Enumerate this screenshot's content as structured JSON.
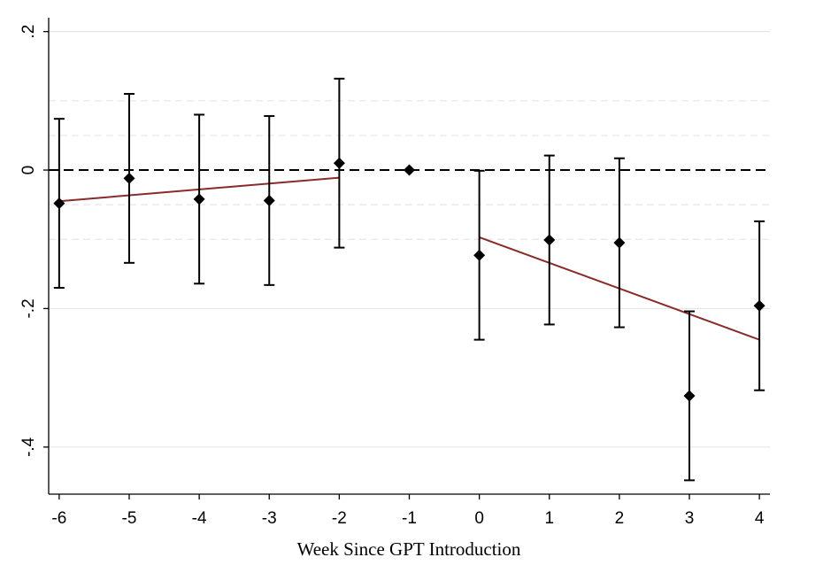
{
  "chart_data": {
    "type": "scatter",
    "title": "",
    "xlabel": "Week Since GPT Introduction",
    "ylabel": "",
    "x_ticks": [
      "-6",
      "-5",
      "-4",
      "-3",
      "-2",
      "-1",
      "0",
      "1",
      "2",
      "3",
      "4"
    ],
    "y_ticks": [
      ".2",
      "0",
      "-.2",
      "-.4"
    ],
    "y_tick_values": [
      0.2,
      0,
      -0.2,
      -0.4
    ],
    "xlim": [
      -6.15,
      4.15
    ],
    "ylim": [
      -0.468,
      0.22
    ],
    "grid": true,
    "reference_line": {
      "y": 0,
      "style": "dashed",
      "color": "#000000"
    },
    "points": [
      {
        "x": -6,
        "y": -0.048,
        "ci_low": -0.17,
        "ci_high": 0.074
      },
      {
        "x": -5,
        "y": -0.012,
        "ci_low": -0.134,
        "ci_high": 0.11
      },
      {
        "x": -4,
        "y": -0.042,
        "ci_low": -0.164,
        "ci_high": 0.08
      },
      {
        "x": -3,
        "y": -0.044,
        "ci_low": -0.166,
        "ci_high": 0.078
      },
      {
        "x": -2,
        "y": 0.01,
        "ci_low": -0.112,
        "ci_high": 0.132
      },
      {
        "x": -1,
        "y": 0.0,
        "ci_low": 0.0,
        "ci_high": 0.0
      },
      {
        "x": 0,
        "y": -0.123,
        "ci_low": -0.245,
        "ci_high": -0.001
      },
      {
        "x": 1,
        "y": -0.101,
        "ci_low": -0.223,
        "ci_high": 0.021
      },
      {
        "x": 2,
        "y": -0.105,
        "ci_low": -0.227,
        "ci_high": 0.017
      },
      {
        "x": 3,
        "y": -0.326,
        "ci_low": -0.448,
        "ci_high": -0.204
      },
      {
        "x": 4,
        "y": -0.196,
        "ci_low": -0.318,
        "ci_high": -0.074
      }
    ],
    "fit_lines": [
      {
        "x": [
          -6,
          -2
        ],
        "y": [
          -0.045,
          -0.011
        ],
        "color": "#8b2a2a"
      },
      {
        "x": [
          0,
          4
        ],
        "y": [
          -0.097,
          -0.245
        ],
        "color": "#8b2a2a"
      }
    ],
    "colors": {
      "points": "#000000",
      "grid": "#e6e6e6",
      "fit": "#8b2a2a"
    }
  }
}
